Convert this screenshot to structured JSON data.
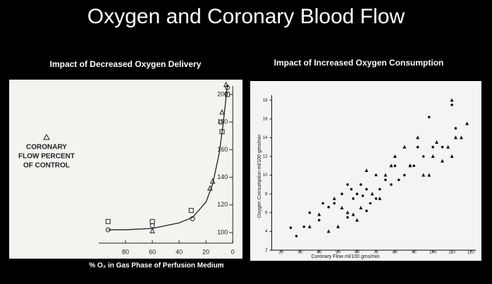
{
  "title": "Oxygen and Coronary Blood Flow",
  "chart_data": [
    {
      "type": "scatter",
      "title": "Impact of Decreased Oxygen Delivery",
      "ylabel": [
        "CORONARY",
        "FLOW PERCENT",
        "OF CONTROL"
      ],
      "xlabel": "% O₂ in Gas Phase of Perfusion Medium",
      "xlim": [
        100,
        -2.5
      ],
      "xticks": [
        80,
        60,
        40,
        20,
        0
      ],
      "ylim": [
        85,
        210
      ],
      "yticks": [
        100,
        120,
        140,
        160,
        180,
        200
      ],
      "color": "#222222",
      "series": [
        {
          "marker": "square",
          "x": [
            93,
            60,
            31,
            8,
            4
          ],
          "values": [
            108,
            108,
            116,
            173,
            200
          ]
        },
        {
          "marker": "circle",
          "x": [
            93,
            60,
            30,
            9,
            4
          ],
          "values": [
            102,
            105,
            110,
            180,
            205
          ]
        },
        {
          "marker": "triangle",
          "x": [
            60,
            17,
            15,
            8,
            5
          ],
          "values": [
            101,
            132,
            137,
            187,
            207
          ]
        },
        {
          "marker": "line",
          "x": [
            93,
            80,
            60,
            40,
            30,
            20,
            15,
            10,
            7,
            5,
            4
          ],
          "values": [
            102,
            102,
            103,
            107,
            111,
            122,
            135,
            158,
            180,
            198,
            207
          ]
        }
      ]
    },
    {
      "type": "scatter",
      "title": "Impact of Increased Oxygen Consumption",
      "ylabel": "Oxygen Consumption   ml/100 gms/min",
      "xlabel": "Coronary Flow     ml/100 gms/min",
      "xlim": [
        15,
        125
      ],
      "xticks": [
        20,
        30,
        40,
        50,
        60,
        70,
        80,
        90,
        100,
        110,
        120
      ],
      "ylim": [
        2,
        19
      ],
      "yticks": [
        2,
        4,
        6,
        8,
        10,
        12,
        14,
        16,
        18
      ],
      "color": "#111111",
      "series": [
        {
          "marker": "dot",
          "x": [
            25,
            28,
            32,
            35,
            40,
            42,
            45,
            48,
            52,
            55,
            57,
            58,
            60,
            62,
            63,
            65,
            67,
            70,
            72,
            75,
            78,
            80,
            82,
            85,
            88,
            90,
            92,
            95,
            98,
            100,
            105,
            110,
            112,
            65,
            55,
            70
          ],
          "values": [
            4.4,
            3.5,
            4.5,
            6,
            5.2,
            7,
            6.6,
            7,
            8,
            9,
            8.5,
            7.5,
            8,
            9,
            7.8,
            8.5,
            7,
            10,
            8.5,
            9.5,
            9,
            11,
            9.5,
            10,
            11,
            11,
            13,
            12,
            16.2,
            13,
            13,
            17.5,
            15,
            6.2,
            5.5,
            7.5
          ]
        },
        {
          "marker": "triangle-filled",
          "x": [
            35,
            40,
            45,
            50,
            48,
            52,
            55,
            58,
            60,
            62,
            65,
            68,
            72,
            75,
            78,
            80,
            85,
            88,
            92,
            95,
            98,
            100,
            102,
            105,
            108,
            110,
            112,
            115,
            118,
            110
          ],
          "values": [
            4.5,
            5.8,
            4,
            4.5,
            7.5,
            6.5,
            6,
            5.8,
            5.2,
            6.5,
            10.5,
            8,
            7.5,
            10,
            11,
            12,
            13,
            11,
            14,
            10,
            10,
            12,
            13.5,
            11.5,
            13,
            18,
            14,
            14,
            15.5,
            12
          ]
        }
      ]
    }
  ]
}
